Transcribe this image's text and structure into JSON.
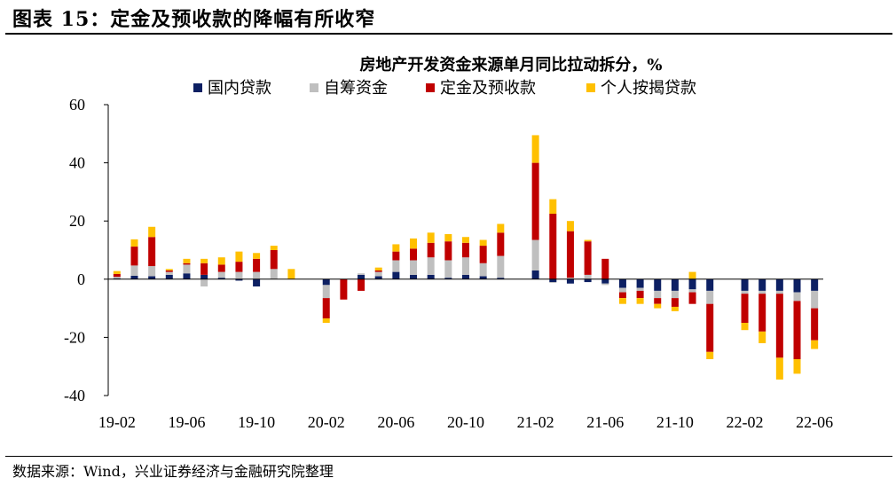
{
  "figure": {
    "title": "图表 15：定金及预收款的降幅有所收窄",
    "source": "数据来源：Wind，兴业证券经济与金融研究院整理"
  },
  "colors": {
    "国内贷款": "#0d2063",
    "自筹资金": "#bfbfbf",
    "定金及预收款": "#c00000",
    "个人按揭贷款": "#ffc000"
  },
  "chart_data": {
    "type": "bar",
    "stacked": true,
    "title": "房地产开发资金来源单月同比拉动拆分，%",
    "xlabel": "",
    "ylabel": "",
    "ylim": [
      -40,
      60
    ],
    "yticks": [
      -40,
      -20,
      0,
      20,
      40,
      60
    ],
    "categories": [
      "19-02",
      "19-03",
      "19-04",
      "19-05",
      "19-06",
      "19-07",
      "19-08",
      "19-09",
      "19-10",
      "19-11",
      "19-12",
      "20-01",
      "20-02",
      "20-03",
      "20-04",
      "20-05",
      "20-06",
      "20-07",
      "20-08",
      "20-09",
      "20-10",
      "20-11",
      "20-12",
      "21-01",
      "21-02",
      "21-03",
      "21-04",
      "21-05",
      "21-06",
      "21-07",
      "21-08",
      "21-09",
      "21-10",
      "21-11",
      "21-12",
      "22-01",
      "22-02",
      "22-03",
      "22-04",
      "22-05",
      "22-06"
    ],
    "xtick_labels": [
      "19-02",
      "19-06",
      "19-10",
      "20-02",
      "20-06",
      "20-10",
      "21-02",
      "21-06",
      "21-10",
      "22-02",
      "22-06"
    ],
    "series": [
      {
        "name": "国内贷款",
        "values": [
          0.3,
          1.2,
          1.0,
          1.5,
          2.0,
          1.5,
          0.5,
          -0.5,
          -2.5,
          null,
          null,
          null,
          -2.0,
          0,
          1.5,
          1.0,
          2.5,
          1.5,
          1.5,
          0.5,
          1.5,
          1.0,
          0.5,
          null,
          3.0,
          -1.0,
          -1.5,
          -1.0,
          -1.5,
          -3.0,
          -3.0,
          -4.0,
          -4.0,
          -3.5,
          -4.0,
          null,
          -4.0,
          -4.0,
          -4.0,
          -4.5,
          -4.0
        ]
      },
      {
        "name": "自筹资金",
        "values": [
          0.5,
          3.5,
          3.5,
          1.0,
          3.0,
          -2.5,
          2.0,
          2.5,
          2.5,
          3.5,
          null,
          null,
          -4.5,
          0,
          0.5,
          1.5,
          4.0,
          5.0,
          6.0,
          6.0,
          6.0,
          4.5,
          7.5,
          null,
          10.5,
          -0.3,
          0.5,
          1.5,
          -0.5,
          -1.5,
          -1.0,
          -2.5,
          -2.5,
          -1.0,
          -4.5,
          null,
          -1.0,
          -1.0,
          -1.0,
          -3.0,
          -6.0
        ]
      },
      {
        "name": "定金及预收款",
        "values": [
          1.0,
          6.5,
          10.0,
          0.5,
          0.5,
          4.0,
          2.5,
          3.5,
          4.5,
          6.5,
          null,
          null,
          -7.0,
          -7.0,
          -4.0,
          0.5,
          3.0,
          4.0,
          5.0,
          6.5,
          5.0,
          6.0,
          8.0,
          null,
          26.5,
          22.5,
          16.0,
          11.5,
          7.0,
          -2.0,
          -2.5,
          -2.0,
          -3.0,
          -4.0,
          -16.5,
          null,
          -10.0,
          -13.0,
          -22.0,
          -20.0,
          -11.0
        ]
      },
      {
        "name": "个人按揭贷款",
        "values": [
          1.0,
          2.5,
          3.5,
          0.5,
          1.5,
          1.5,
          2.5,
          3.5,
          2.0,
          1.5,
          3.5,
          null,
          -1.5,
          0,
          0,
          1.0,
          2.5,
          3.5,
          3.5,
          2.5,
          2.0,
          2.0,
          3.0,
          null,
          9.5,
          5.0,
          3.5,
          0.5,
          0,
          -2.0,
          -2.0,
          -1.5,
          -1.5,
          2.5,
          -2.5,
          null,
          -2.5,
          -4.0,
          -7.5,
          -5.0,
          -3.0
        ]
      }
    ],
    "legend": [
      "国内贷款",
      "自筹资金",
      "定金及预收款",
      "个人按揭贷款"
    ],
    "legend_position": "top-center",
    "grid": false
  }
}
